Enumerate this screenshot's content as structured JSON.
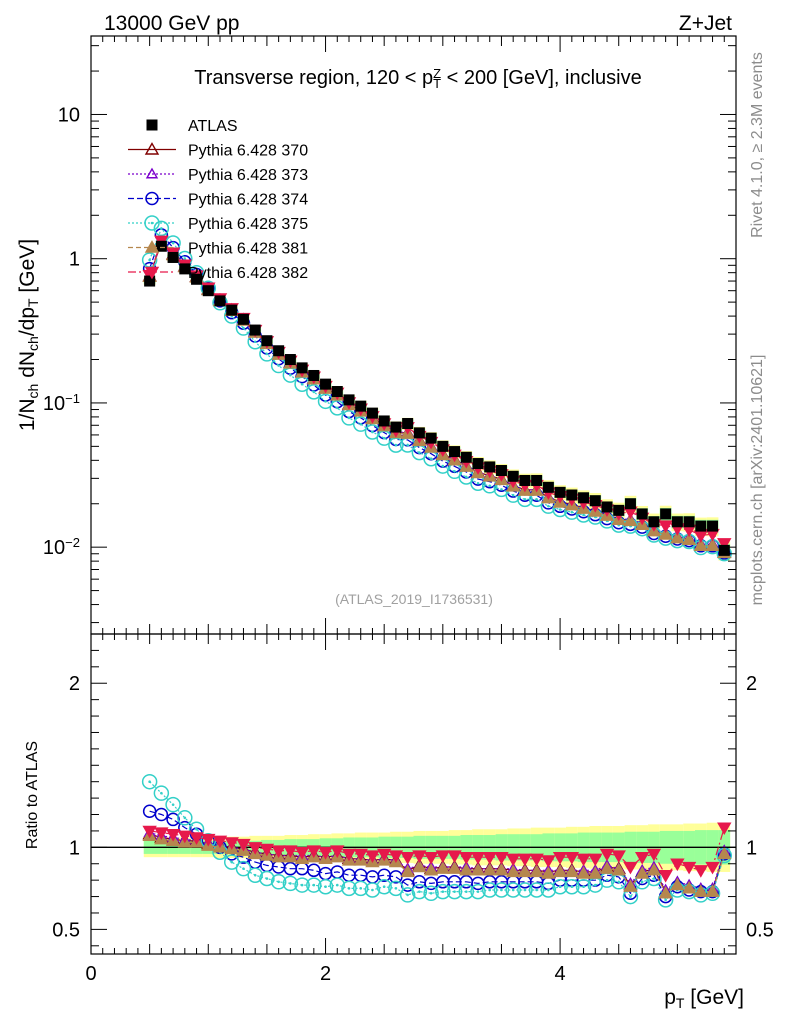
{
  "header": {
    "energy_label": "13000 GeV pp",
    "process_label": "Z+Jet",
    "title_prefix": "Transverse region, 120 < p",
    "title_sub": "T",
    "title_sup": "Z",
    "title_suffix": " < 200 [GeV], inclusive",
    "analysis_id": "(ATLAS_2019_I1736531)",
    "side_text_top": "Rivet 4.1.0, ≥ 2.3M events",
    "side_text_bottom": "mcplots.cern.ch [arXiv:2401.10621]"
  },
  "colors": {
    "band_green": "#99ff99",
    "band_yellow": "#ffff99"
  },
  "chart_data": [
    {
      "type": "scatter",
      "name": "main",
      "title": "Transverse region, 120 < pT^Z < 200 [GeV], inclusive",
      "xlabel": "p_T [GeV]",
      "ylabel": "1/N_ch dN_ch/dp_T [GeV]",
      "yscale": "log",
      "xlim": [
        0,
        5.5
      ],
      "ylim": [
        0.0025,
        35
      ],
      "ytick_values": [
        0.01,
        0.1,
        1,
        10
      ],
      "yticks": [
        {
          "base": "10",
          "exp": "−2"
        },
        {
          "base": "10",
          "exp": "−1"
        },
        {
          "base": "1",
          "exp": ""
        },
        {
          "base": "10",
          "exp": ""
        }
      ],
      "legend": [
        "ATLAS",
        "Pythia 6.428 370",
        "Pythia 6.428 373",
        "Pythia 6.428 374",
        "Pythia 6.428 375",
        "Pythia 6.428 381",
        "Pythia 6.428 382"
      ],
      "x": [
        0.5,
        0.6,
        0.7,
        0.8,
        0.9,
        1.0,
        1.1,
        1.2,
        1.3,
        1.4,
        1.5,
        1.6,
        1.7,
        1.8,
        1.9,
        2.0,
        2.1,
        2.2,
        2.3,
        2.4,
        2.5,
        2.6,
        2.7,
        2.8,
        2.9,
        3.0,
        3.1,
        3.2,
        3.3,
        3.4,
        3.5,
        3.6,
        3.7,
        3.8,
        3.9,
        4.0,
        4.1,
        4.2,
        4.3,
        4.4,
        4.5,
        4.6,
        4.7,
        4.8,
        4.9,
        5.0,
        5.1,
        5.2,
        5.3,
        5.4
      ],
      "data": [
        0.7,
        1.22,
        1.02,
        0.85,
        0.72,
        0.6,
        0.51,
        0.44,
        0.38,
        0.32,
        0.27,
        0.23,
        0.2,
        0.175,
        0.155,
        0.135,
        0.12,
        0.105,
        0.095,
        0.085,
        0.075,
        0.068,
        0.072,
        0.062,
        0.057,
        0.05,
        0.046,
        0.042,
        0.038,
        0.036,
        0.034,
        0.031,
        0.029,
        0.029,
        0.026,
        0.024,
        0.023,
        0.022,
        0.021,
        0.019,
        0.018,
        0.02,
        0.017,
        0.015,
        0.017,
        0.015,
        0.015,
        0.014,
        0.014,
        0.0095
      ],
      "ratios": [
        {
          "name": "Pythia 6.428 370",
          "values": [
            1.08,
            1.06,
            1.05,
            1.04,
            1.04,
            1.02,
            1.01,
            1.0,
            0.99,
            0.97,
            0.96,
            0.95,
            0.95,
            0.94,
            0.95,
            0.94,
            0.95,
            0.93,
            0.93,
            0.92,
            0.93,
            0.92,
            0.86,
            0.89,
            0.87,
            0.88,
            0.88,
            0.87,
            0.87,
            0.87,
            0.87,
            0.86,
            0.86,
            0.86,
            0.85,
            0.86,
            0.86,
            0.85,
            0.85,
            0.88,
            0.87,
            0.77,
            0.85,
            0.87,
            0.73,
            0.78,
            0.76,
            0.74,
            0.74,
            0.97
          ]
        },
        {
          "name": "Pythia 6.428 373",
          "values": [
            1.09,
            1.07,
            1.06,
            1.05,
            1.04,
            1.03,
            1.01,
            1.0,
            0.99,
            0.97,
            0.96,
            0.95,
            0.95,
            0.95,
            0.95,
            0.94,
            0.95,
            0.93,
            0.93,
            0.92,
            0.93,
            0.92,
            0.87,
            0.89,
            0.88,
            0.88,
            0.88,
            0.88,
            0.87,
            0.87,
            0.87,
            0.87,
            0.86,
            0.86,
            0.86,
            0.86,
            0.86,
            0.86,
            0.86,
            0.89,
            0.87,
            0.78,
            0.86,
            0.88,
            0.74,
            0.79,
            0.77,
            0.75,
            0.75,
            0.98
          ]
        },
        {
          "name": "Pythia 6.428 374",
          "values": [
            1.22,
            1.2,
            1.17,
            1.12,
            1.08,
            1.04,
            1.0,
            0.96,
            0.94,
            0.91,
            0.89,
            0.88,
            0.87,
            0.87,
            0.86,
            0.84,
            0.85,
            0.83,
            0.83,
            0.82,
            0.83,
            0.82,
            0.77,
            0.79,
            0.78,
            0.79,
            0.79,
            0.79,
            0.78,
            0.79,
            0.79,
            0.79,
            0.79,
            0.79,
            0.78,
            0.8,
            0.8,
            0.8,
            0.8,
            0.83,
            0.82,
            0.72,
            0.81,
            0.83,
            0.7,
            0.76,
            0.74,
            0.73,
            0.73,
            0.96
          ]
        },
        {
          "name": "Pythia 6.428 375",
          "values": [
            1.4,
            1.33,
            1.26,
            1.18,
            1.11,
            1.04,
            0.97,
            0.91,
            0.87,
            0.83,
            0.81,
            0.79,
            0.78,
            0.77,
            0.77,
            0.76,
            0.77,
            0.75,
            0.75,
            0.74,
            0.76,
            0.75,
            0.71,
            0.73,
            0.72,
            0.73,
            0.73,
            0.73,
            0.73,
            0.74,
            0.74,
            0.74,
            0.74,
            0.74,
            0.74,
            0.76,
            0.76,
            0.76,
            0.77,
            0.8,
            0.79,
            0.7,
            0.79,
            0.81,
            0.68,
            0.74,
            0.73,
            0.71,
            0.72,
            0.95
          ]
        },
        {
          "name": "Pythia 6.428 381",
          "values": [
            1.07,
            1.05,
            1.04,
            1.03,
            1.03,
            1.01,
            1.0,
            0.99,
            0.98,
            0.96,
            0.95,
            0.94,
            0.94,
            0.93,
            0.94,
            0.93,
            0.94,
            0.92,
            0.92,
            0.91,
            0.92,
            0.91,
            0.85,
            0.88,
            0.86,
            0.87,
            0.87,
            0.86,
            0.86,
            0.86,
            0.86,
            0.85,
            0.85,
            0.85,
            0.84,
            0.85,
            0.85,
            0.84,
            0.84,
            0.87,
            0.86,
            0.76,
            0.84,
            0.86,
            0.72,
            0.77,
            0.75,
            0.73,
            0.73,
            0.96
          ]
        },
        {
          "name": "Pythia 6.428 382",
          "values": [
            1.1,
            1.09,
            1.08,
            1.07,
            1.06,
            1.05,
            1.04,
            1.03,
            1.02,
            1.0,
            0.99,
            0.98,
            0.98,
            0.97,
            0.98,
            0.97,
            0.98,
            0.96,
            0.96,
            0.95,
            0.96,
            0.95,
            0.94,
            0.95,
            0.94,
            0.95,
            0.95,
            0.94,
            0.94,
            0.94,
            0.94,
            0.93,
            0.93,
            0.93,
            0.92,
            0.94,
            0.94,
            0.93,
            0.93,
            0.96,
            0.95,
            0.88,
            0.94,
            0.96,
            0.83,
            0.9,
            0.88,
            0.86,
            0.88,
            1.12
          ]
        }
      ]
    },
    {
      "type": "scatter",
      "name": "ratio",
      "xlabel": "p_T [GeV]",
      "ylabel": "Ratio to ATLAS",
      "xlim": [
        0,
        5.5
      ],
      "ylim": [
        0.35,
        2.3
      ],
      "yticks": [
        0.5,
        1,
        2
      ],
      "xticks": [
        0,
        2,
        4
      ],
      "reference_line": 1,
      "band_inner": [
        0.04,
        0.04,
        0.04,
        0.04,
        0.04,
        0.04,
        0.04,
        0.04,
        0.04,
        0.04,
        0.045,
        0.045,
        0.05,
        0.05,
        0.05,
        0.055,
        0.055,
        0.06,
        0.06,
        0.06,
        0.065,
        0.065,
        0.065,
        0.07,
        0.07,
        0.07,
        0.07,
        0.075,
        0.075,
        0.075,
        0.08,
        0.08,
        0.08,
        0.08,
        0.085,
        0.085,
        0.085,
        0.09,
        0.09,
        0.09,
        0.09,
        0.095,
        0.095,
        0.095,
        0.1,
        0.1,
        0.1,
        0.105,
        0.105,
        0.105
      ],
      "band_outer": [
        0.06,
        0.06,
        0.06,
        0.06,
        0.06,
        0.06,
        0.065,
        0.065,
        0.065,
        0.07,
        0.07,
        0.07,
        0.075,
        0.075,
        0.08,
        0.08,
        0.085,
        0.085,
        0.09,
        0.09,
        0.09,
        0.095,
        0.095,
        0.1,
        0.1,
        0.1,
        0.105,
        0.105,
        0.11,
        0.11,
        0.11,
        0.115,
        0.115,
        0.12,
        0.12,
        0.12,
        0.125,
        0.125,
        0.13,
        0.13,
        0.13,
        0.135,
        0.135,
        0.14,
        0.14,
        0.14,
        0.145,
        0.145,
        0.15,
        0.15
      ]
    }
  ]
}
